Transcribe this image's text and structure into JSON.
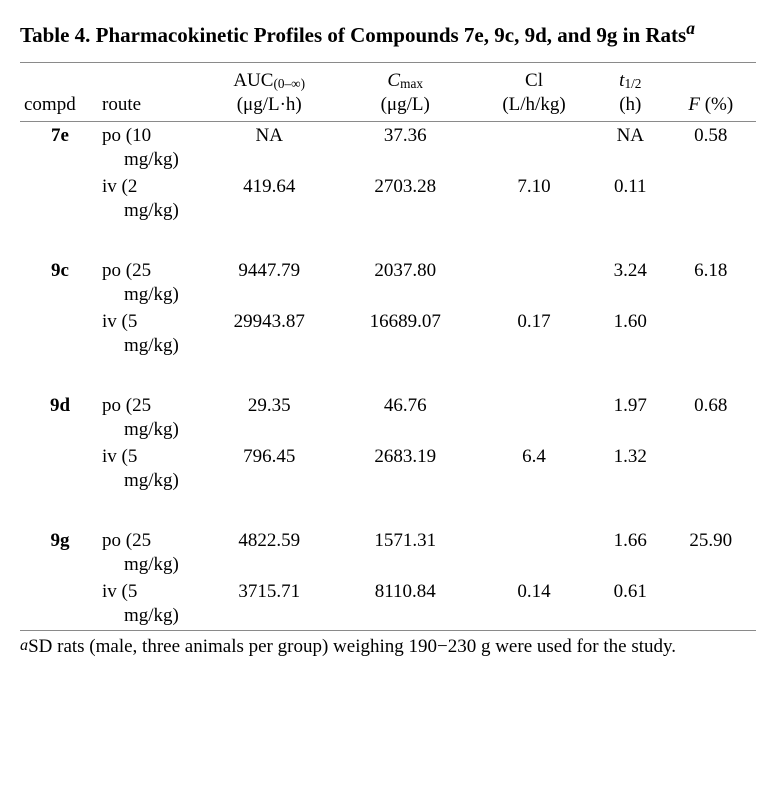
{
  "table": {
    "title_prefix": "Table 4. Pharmacokinetic Profiles of Compounds 7e, 9c, 9d, and 9g in Rats",
    "title_marker": "a",
    "columns": {
      "compd": "compd",
      "route": "route",
      "auc_top": "AUC",
      "auc_sub": "(0–∞)",
      "auc_unit": "(μg/L·h)",
      "cmax_top": "C",
      "cmax_sub": "max",
      "cmax_unit": "(μg/L)",
      "cl_top": "Cl",
      "cl_unit": "(L/h/kg)",
      "t12_t": "t",
      "t12_sub": "1/2",
      "t12_unit": "(h)",
      "f_top": "F",
      "f_unit": " (%)"
    },
    "groups": [
      {
        "compd": "7e",
        "rows": [
          {
            "route_l1": "po (10",
            "route_l2": "mg/kg)",
            "auc": "NA",
            "cmax": "37.36",
            "cl": "",
            "t12": "NA",
            "f": "0.58"
          },
          {
            "route_l1": "iv (2",
            "route_l2": "mg/kg)",
            "auc": "419.64",
            "cmax": "2703.28",
            "cl": "7.10",
            "t12": "0.11",
            "f": ""
          }
        ]
      },
      {
        "compd": "9c",
        "rows": [
          {
            "route_l1": "po (25",
            "route_l2": "mg/kg)",
            "auc": "9447.79",
            "cmax": "2037.80",
            "cl": "",
            "t12": "3.24",
            "f": "6.18"
          },
          {
            "route_l1": "iv (5",
            "route_l2": "mg/kg)",
            "auc": "29943.87",
            "cmax": "16689.07",
            "cl": "0.17",
            "t12": "1.60",
            "f": ""
          }
        ]
      },
      {
        "compd": "9d",
        "rows": [
          {
            "route_l1": "po (25",
            "route_l2": "mg/kg)",
            "auc": "29.35",
            "cmax": "46.76",
            "cl": "",
            "t12": "1.97",
            "f": "0.68"
          },
          {
            "route_l1": "iv (5",
            "route_l2": "mg/kg)",
            "auc": "796.45",
            "cmax": "2683.19",
            "cl": "6.4",
            "t12": "1.32",
            "f": ""
          }
        ]
      },
      {
        "compd": "9g",
        "rows": [
          {
            "route_l1": "po (25",
            "route_l2": "mg/kg)",
            "auc": "4822.59",
            "cmax": "1571.31",
            "cl": "",
            "t12": "1.66",
            "f": "25.90"
          },
          {
            "route_l1": "iv (5",
            "route_l2": "mg/kg)",
            "auc": "3715.71",
            "cmax": "8110.84",
            "cl": "0.14",
            "t12": "0.61",
            "f": ""
          }
        ]
      }
    ],
    "footnote_marker": "a",
    "footnote_text": "SD rats (male, three animals per group) weighing 190−230 g were used for the study."
  }
}
